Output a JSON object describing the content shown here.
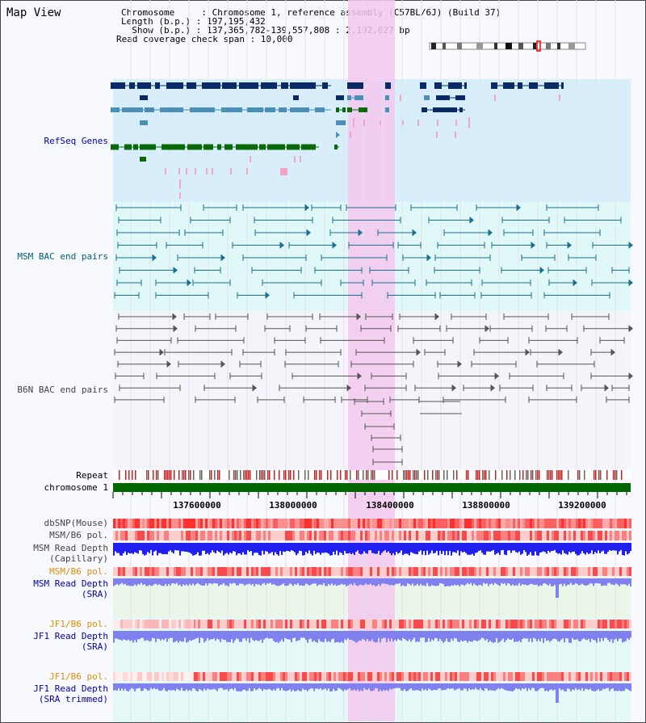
{
  "map_view": {
    "title": "Map View",
    "info": {
      "chromosome_line": "Chromosome     : Chromosome 1, reference assembly (C57BL/6J) (Build 37)",
      "length_line": "Length (b.p.) : 197,195,432",
      "show_line": "  Show (b.p.) : 137,365,782-139,557,808 : 2,192,027 bp",
      "span_line": "Read coverage check span : 10,000"
    }
  },
  "tracks": {
    "refseq_genes": "RefSeq Genes",
    "msm_bac": "MSM BAC end pairs",
    "b6n_bac": "B6N BAC end pairs",
    "repeat": "Repeat",
    "chromosome": "chromosome 1",
    "dbsnp": "dbSNP(Mouse)",
    "msm_b6_pol_1": "MSM/B6 pol.",
    "msm_depth_cap_1": "MSM Read Depth",
    "msm_depth_cap_2": "(Capillary)",
    "msm_b6_pol_2": "MSM/B6 pol.",
    "msm_depth_sra_1": "MSM Read Depth",
    "msm_depth_sra_2": "(SRA)",
    "jf1_b6_pol_1": "JF1/B6 pol.",
    "jf1_depth_sra_1": "JF1 Read Depth",
    "jf1_depth_sra_2": "(SRA)",
    "jf1_b6_pol_2": "JF1/B6 pol.",
    "jf1_depth_trim_1": "JF1 Read Depth",
    "jf1_depth_trim_2": "(SRA trimmed)"
  },
  "axis": {
    "ticks": [
      "137600000",
      "138000000",
      "138400000",
      "138800000",
      "139200000"
    ]
  },
  "colors": {
    "refseq_bg": "#d8eefa",
    "msm_bac_bg": "#e0f8f8",
    "highlight": "#f5c8ee",
    "gene_dark": "#0a2a66",
    "gene_mid": "#4a8fb8",
    "gene_green": "#0a6a0a",
    "gene_pink": "#f4a0c0",
    "msm_bac_line": "#1a7090",
    "b6n_bac_line": "#555555",
    "chrom_green": "#006600",
    "depth_blue": "#2020ee",
    "depth_light_blue": "#8080ee",
    "label_blue": "#0000aa",
    "label_orange": "#e09000",
    "label_teal": "#006070"
  }
}
